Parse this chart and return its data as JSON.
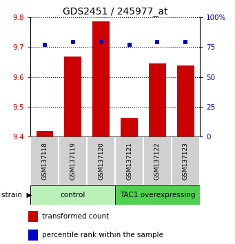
{
  "title": "GDS2451 / 245977_at",
  "samples": [
    "GSM137118",
    "GSM137119",
    "GSM137120",
    "GSM137121",
    "GSM137122",
    "GSM137123"
  ],
  "transformed_counts": [
    9.418,
    9.668,
    9.785,
    9.462,
    9.645,
    9.637
  ],
  "percentile_ranks": [
    77,
    79,
    79,
    77,
    79,
    79
  ],
  "ylim_left": [
    9.4,
    9.8
  ],
  "ylim_right": [
    0,
    100
  ],
  "yticks_left": [
    9.4,
    9.5,
    9.6,
    9.7,
    9.8
  ],
  "yticks_right": [
    0,
    25,
    50,
    75,
    100
  ],
  "groups": [
    {
      "label": "control",
      "color": "#b8f0b8",
      "xmin": 0,
      "xmax": 3
    },
    {
      "label": "TAC1 overexpressing",
      "color": "#50d050",
      "xmin": 3,
      "xmax": 6
    }
  ],
  "bar_color": "#cc0000",
  "dot_color": "#0000cc",
  "bar_width": 0.6,
  "background_color": "#ffffff",
  "label_color_left": "#cc0000",
  "label_color_right": "#0000cc",
  "box_color": "#d0d0d0"
}
